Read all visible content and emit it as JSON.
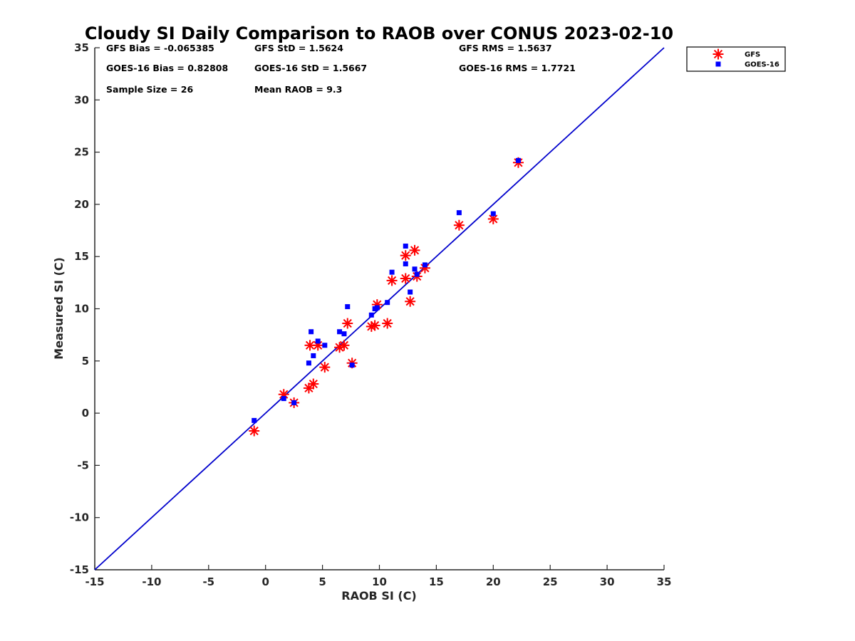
{
  "chart_data": {
    "type": "scatter",
    "title": "Cloudy SI Daily Comparison to RAOB over CONUS 2023-02-10",
    "xlabel": "RAOB SI (C)",
    "ylabel": "Measured SI (C)",
    "xlim": [
      -15,
      35
    ],
    "ylim": [
      -15,
      35
    ],
    "xticks": [
      "-15",
      "-10",
      "-5",
      "0",
      "5",
      "10",
      "15",
      "20",
      "25",
      "30",
      "35"
    ],
    "yticks": [
      "-15",
      "-10",
      "-5",
      "0",
      "5",
      "10",
      "15",
      "20",
      "25",
      "30",
      "35"
    ],
    "grid": false,
    "legend_position": "outside-top-right",
    "reference_line": {
      "x": [
        -15,
        35
      ],
      "y": [
        -15,
        35
      ],
      "color": "#0000cc"
    },
    "stats": [
      [
        "GFS Bias = -0.065385",
        "GFS StD = 1.5624",
        "GFS RMS = 1.5637"
      ],
      [
        "GOES-16 Bias = 0.82808",
        "GOES-16 StD = 1.5667",
        "GOES-16 RMS = 1.7721"
      ],
      [
        "Sample Size = 26",
        "Mean RAOB = 9.3",
        ""
      ]
    ],
    "series": [
      {
        "name": "GFS",
        "marker": "asterisk",
        "color": "#ff0000",
        "x": [
          -1.0,
          1.6,
          2.5,
          3.8,
          4.2,
          3.9,
          4.6,
          5.2,
          6.5,
          6.9,
          7.2,
          7.6,
          9.3,
          9.6,
          9.8,
          10.7,
          11.1,
          12.3,
          12.3,
          12.7,
          13.1,
          13.3,
          14.0,
          17.0,
          20.0,
          22.2
        ],
        "y": [
          -1.7,
          1.8,
          1.0,
          2.4,
          2.8,
          6.5,
          6.5,
          4.4,
          6.3,
          6.5,
          8.6,
          4.8,
          8.3,
          8.4,
          10.4,
          8.6,
          12.7,
          12.9,
          15.1,
          10.7,
          15.6,
          13.1,
          13.9,
          18.0,
          18.6,
          24.0
        ]
      },
      {
        "name": "GOES-16",
        "marker": "square",
        "color": "#0000ff",
        "x": [
          -1.0,
          1.6,
          2.5,
          3.8,
          4.2,
          4.0,
          4.6,
          5.2,
          6.5,
          6.9,
          7.2,
          7.6,
          9.3,
          9.6,
          9.8,
          10.7,
          11.1,
          12.3,
          12.3,
          12.7,
          13.1,
          13.3,
          14.0,
          17.0,
          20.0,
          22.2
        ],
        "y": [
          -0.7,
          1.4,
          1.0,
          4.8,
          5.5,
          7.8,
          6.9,
          6.5,
          7.8,
          7.6,
          10.2,
          4.6,
          9.4,
          10.0,
          10.1,
          10.6,
          13.5,
          14.3,
          16.0,
          11.6,
          13.8,
          13.3,
          14.2,
          19.2,
          19.1,
          24.2
        ]
      }
    ]
  }
}
